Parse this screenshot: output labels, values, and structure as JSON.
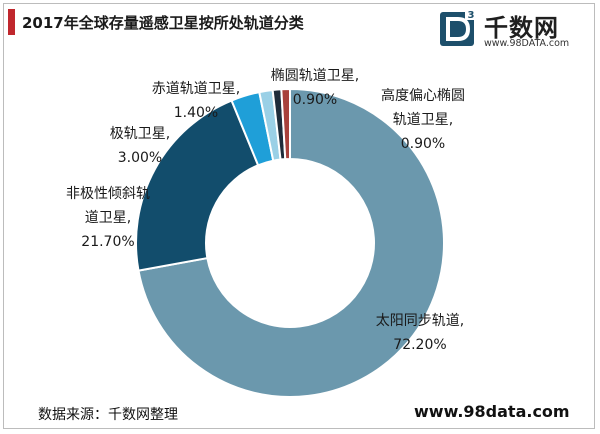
{
  "header": {
    "title": "2017年全球存量遥感卫星按所处轨道分类",
    "accent_color": "#c0272d"
  },
  "logo": {
    "name": "千数网",
    "url": "www.98DATA.com",
    "badge_color": "#1d4f6b"
  },
  "footer": {
    "source": "数据来源：千数网整理",
    "url": "www.98data.com"
  },
  "chart_data": {
    "type": "pie",
    "title": "2017年全球存量遥感卫星按所处轨道分类",
    "donut": true,
    "unit": "%",
    "slices": [
      {
        "name": "太阳同步轨道",
        "value": 72.2,
        "label": "72.20%",
        "label_lines": [
          "太阳同步轨道,",
          "72.20%"
        ],
        "color": "#6b98ad"
      },
      {
        "name": "非极性倾斜轨道卫星",
        "value": 21.7,
        "label": "21.70%",
        "label_lines": [
          "非极性倾斜轨",
          "道卫星,",
          "21.70%"
        ],
        "color": "#124d6c"
      },
      {
        "name": "极轨卫星",
        "value": 3.0,
        "label": "3.00%",
        "label_lines": [
          "极轨卫星,",
          "3.00%"
        ],
        "color": "#1f9fd8"
      },
      {
        "name": "赤道轨道卫星",
        "value": 1.4,
        "label": "1.40%",
        "label_lines": [
          "赤道轨道卫星,",
          "1.40%"
        ],
        "color": "#9ad0e6"
      },
      {
        "name": "椭圆轨道卫星",
        "value": 0.9,
        "label": "0.90%",
        "label_lines": [
          "椭圆轨道卫星,",
          "0.90%"
        ],
        "color": "#1e2c3a"
      },
      {
        "name": "高度偏心椭圆轨道卫星",
        "value": 0.9,
        "label": "0.90%",
        "label_lines": [
          "高度偏心椭圆",
          "轨道卫星,",
          "0.90%"
        ],
        "color": "#a8413b"
      }
    ],
    "legend": "none"
  }
}
